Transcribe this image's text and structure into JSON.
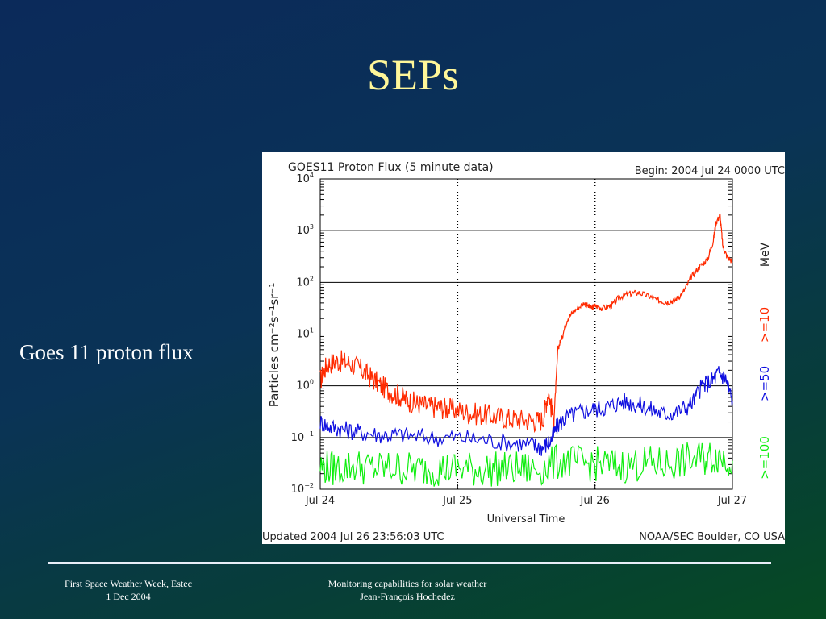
{
  "slide": {
    "title": "SEPs",
    "caption": "Goes 11 proton flux"
  },
  "footer": {
    "left_line1": "First Space Weather Week, Estec",
    "left_line2": "1 Dec 2004",
    "center_line1": "Monitoring capabilities for solar weather",
    "center_line2": "Jean-François Hochedez"
  },
  "colors": {
    "title": "#fff799",
    "series_ge10": "#ff2a00",
    "series_ge50": "#1010e0",
    "series_ge100": "#10ee10"
  },
  "chart_data": {
    "type": "line",
    "title": "GOES11 Proton Flux (5 minute data)",
    "begin_label": "Begin: 2004 Jul 24 0000 UTC",
    "updated_label": "Updated 2004 Jul 26 23:56:03 UTC",
    "source_label": "NOAA/SEC Boulder, CO USA",
    "xlabel": "Universal Time",
    "ylabel": "Particles cm⁻²s⁻¹sr⁻¹",
    "unit_label": "MeV",
    "y_scale": "log",
    "ylim_exp": [
      -2,
      4
    ],
    "xlim_days": [
      0,
      3
    ],
    "x_ticks": [
      {
        "day": 0,
        "label": "Jul 24"
      },
      {
        "day": 1,
        "label": "Jul 25"
      },
      {
        "day": 2,
        "label": "Jul 26"
      },
      {
        "day": 3,
        "label": "Jul 27"
      }
    ],
    "y_ticks": [
      {
        "exp": 4,
        "mant": "10",
        "sup": "4"
      },
      {
        "exp": 3,
        "mant": "10",
        "sup": "3"
      },
      {
        "exp": 2,
        "mant": "10",
        "sup": "2"
      },
      {
        "exp": 1,
        "mant": "10",
        "sup": "1"
      },
      {
        "exp": 0,
        "mant": "10",
        "sup": "0"
      },
      {
        "exp": -1,
        "mant": "10",
        "sup": "−1"
      },
      {
        "exp": -2,
        "mant": "10",
        "sup": "−2"
      }
    ],
    "threshold_exp": 1,
    "series": [
      {
        "name": ">=10",
        "color": "#ff2a00",
        "points": [
          [
            0.0,
            0.1
          ],
          [
            0.05,
            0.42
          ],
          [
            0.12,
            0.48
          ],
          [
            0.2,
            0.45
          ],
          [
            0.28,
            0.35
          ],
          [
            0.35,
            0.2
          ],
          [
            0.42,
            0.05
          ],
          [
            0.5,
            -0.1
          ],
          [
            0.58,
            -0.2
          ],
          [
            0.65,
            -0.3
          ],
          [
            0.72,
            -0.35
          ],
          [
            0.8,
            -0.4
          ],
          [
            0.88,
            -0.42
          ],
          [
            0.95,
            -0.45
          ],
          [
            1.05,
            -0.5
          ],
          [
            1.15,
            -0.55
          ],
          [
            1.25,
            -0.58
          ],
          [
            1.35,
            -0.62
          ],
          [
            1.45,
            -0.65
          ],
          [
            1.55,
            -0.68
          ],
          [
            1.62,
            -0.66
          ],
          [
            1.66,
            -0.1
          ],
          [
            1.7,
            -0.7
          ],
          [
            1.73,
            0.72
          ],
          [
            1.76,
            0.95
          ],
          [
            1.8,
            1.3
          ],
          [
            1.85,
            1.45
          ],
          [
            1.92,
            1.6
          ],
          [
            1.97,
            1.5
          ],
          [
            2.0,
            1.55
          ],
          [
            2.05,
            1.5
          ],
          [
            2.12,
            1.55
          ],
          [
            2.18,
            1.72
          ],
          [
            2.25,
            1.78
          ],
          [
            2.32,
            1.8
          ],
          [
            2.4,
            1.72
          ],
          [
            2.46,
            1.65
          ],
          [
            2.52,
            1.62
          ],
          [
            2.58,
            1.65
          ],
          [
            2.64,
            1.8
          ],
          [
            2.7,
            2.1
          ],
          [
            2.76,
            2.3
          ],
          [
            2.82,
            2.45
          ],
          [
            2.86,
            2.8
          ],
          [
            2.88,
            3.15
          ],
          [
            2.91,
            3.3
          ],
          [
            2.93,
            2.7
          ],
          [
            2.96,
            2.5
          ],
          [
            3.0,
            2.4
          ]
        ]
      },
      {
        "name": ">=50",
        "color": "#1010e0",
        "points": [
          [
            0.0,
            -0.7
          ],
          [
            0.08,
            -0.8
          ],
          [
            0.18,
            -0.85
          ],
          [
            0.3,
            -0.9
          ],
          [
            0.45,
            -0.95
          ],
          [
            0.6,
            -0.95
          ],
          [
            0.8,
            -1.0
          ],
          [
            1.0,
            -1.0
          ],
          [
            1.2,
            -1.05
          ],
          [
            1.4,
            -1.1
          ],
          [
            1.55,
            -1.15
          ],
          [
            1.62,
            -1.2
          ],
          [
            1.68,
            -1.05
          ],
          [
            1.73,
            -0.75
          ],
          [
            1.8,
            -0.6
          ],
          [
            1.9,
            -0.5
          ],
          [
            2.0,
            -0.45
          ],
          [
            2.1,
            -0.4
          ],
          [
            2.2,
            -0.3
          ],
          [
            2.3,
            -0.35
          ],
          [
            2.4,
            -0.45
          ],
          [
            2.5,
            -0.55
          ],
          [
            2.6,
            -0.5
          ],
          [
            2.7,
            -0.35
          ],
          [
            2.78,
            0.0
          ],
          [
            2.85,
            0.1
          ],
          [
            2.9,
            0.25
          ],
          [
            2.95,
            0.15
          ],
          [
            3.0,
            -0.3
          ]
        ]
      },
      {
        "name": ">=100",
        "color": "#10ee10",
        "points": [
          [
            0.0,
            -1.55
          ],
          [
            0.1,
            -1.6
          ],
          [
            0.25,
            -1.55
          ],
          [
            0.4,
            -1.6
          ],
          [
            0.55,
            -1.58
          ],
          [
            0.7,
            -1.62
          ],
          [
            0.85,
            -1.6
          ],
          [
            1.0,
            -1.6
          ],
          [
            1.15,
            -1.62
          ],
          [
            1.3,
            -1.6
          ],
          [
            1.45,
            -1.62
          ],
          [
            1.6,
            -1.6
          ],
          [
            1.75,
            -1.45
          ],
          [
            1.9,
            -1.5
          ],
          [
            2.05,
            -1.52
          ],
          [
            2.2,
            -1.55
          ],
          [
            2.35,
            -1.5
          ],
          [
            2.5,
            -1.52
          ],
          [
            2.65,
            -1.45
          ],
          [
            2.8,
            -1.4
          ],
          [
            2.9,
            -1.35
          ],
          [
            3.0,
            -1.45
          ]
        ]
      }
    ],
    "grid": true
  }
}
